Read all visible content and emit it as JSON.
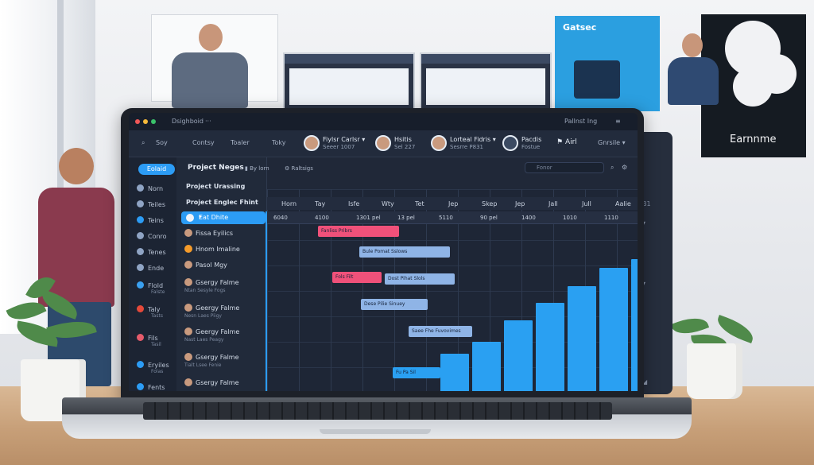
{
  "background": {
    "poster_blue_brand": "Gatsec",
    "poster_dark_word": "Earnnme"
  },
  "titlebar": {
    "app_name": "Dsighboid",
    "menu": "···",
    "right_user": "Pallnst Ing",
    "right_menu": "≡"
  },
  "toolbar": {
    "search_icon": "search-icon",
    "items": [
      "Soy",
      "Contsy",
      "Toaler",
      "Toky"
    ],
    "profiles": [
      {
        "name": "Fiylsr Carlsr ▾",
        "sub": "Seeer   1007"
      },
      {
        "name": "Hsitis",
        "sub": "Sel 227"
      },
      {
        "name": "Lorteal Fidris ▾",
        "sub": "Sesrre   P831"
      },
      {
        "name": "Pacdis",
        "sub": "Fostue"
      }
    ],
    "alert_label": "Airl",
    "menu_label": "Gnrsile ▾"
  },
  "sidebar": {
    "top_pill": "Eolaid",
    "items": [
      {
        "label": "Norn",
        "icon": "home-icon",
        "color": "#8fa4c4"
      },
      {
        "label": "Teiles",
        "icon": "table-icon",
        "color": "#8fa4c4"
      },
      {
        "label": "Teins",
        "icon": "team-icon",
        "color": "#2c9cf5"
      },
      {
        "label": "Conro",
        "icon": "folder-icon",
        "color": "#8fa4c4"
      },
      {
        "label": "Tenes",
        "icon": "calendar-icon",
        "color": "#8fa4c4"
      },
      {
        "label": "Ende",
        "icon": "clock-icon",
        "color": "#8fa4c4"
      },
      {
        "label": "Flold",
        "icon": "chart-icon",
        "color": "#3aa0f0"
      },
      {
        "label": "Taly",
        "icon": "google-icon",
        "color": "#e5493a"
      },
      {
        "label": "Fils",
        "icon": "file-icon",
        "color": "#e55b6b"
      },
      {
        "label": "Eryiles",
        "icon": "settings-icon",
        "color": "#2c9cf5"
      },
      {
        "label": "Fents",
        "icon": "user-icon",
        "color": "#2c9cf5"
      }
    ],
    "subs": [
      "Falste",
      "Tasts",
      "Tasil",
      "Folas"
    ]
  },
  "project": {
    "header": "Project Neges",
    "filter_1": "By lorn",
    "filter_2": "Raltsigs",
    "search_placeholder": "Fonor",
    "section_1": "Project Urassing",
    "section_2": "Project Englec Fhint",
    "selected_task": "Eat Dhite",
    "tasks": [
      {
        "name": "Fissa Eyilics",
        "sub": ""
      },
      {
        "name": "Hnom Imaline",
        "sub": ""
      },
      {
        "name": "Pasol Mgy",
        "sub": ""
      },
      {
        "name": "Gsergy Falme",
        "sub": "Ntan Sesyle Fogs"
      },
      {
        "name": "Geergy Falme",
        "sub": "Nesn Laes Piigy"
      },
      {
        "name": "Geergy Falme",
        "sub": "Nast Laes Peagy"
      },
      {
        "name": "Gsergy Falme",
        "sub": "Tialt Lsee Fenie"
      },
      {
        "name": "Gsergy Falme",
        "sub": ""
      }
    ]
  },
  "timeline": {
    "months": [
      "Horn",
      "Tay",
      "Isfe",
      "Wty",
      "Tet",
      "Jep",
      "Skep",
      "Jep",
      "Jall",
      "Jull",
      "Aalie"
    ],
    "days": [
      "6040",
      "4100",
      "1301 pel",
      "13 pel",
      "5110",
      "90 pel",
      "1400",
      "1010",
      "1110"
    ]
  },
  "gantt": [
    {
      "label": "Fanliss Pribrs",
      "color": "#f0517a"
    },
    {
      "label": "Bule Pomat Sslows",
      "color": "#8fb4e6"
    },
    {
      "label": "Fols Filt",
      "color": "#f0517a"
    },
    {
      "label": "Dost Pihat Slols",
      "color": "#8fb4e6"
    },
    {
      "label": "Dese Pilie Sinuey",
      "color": "#8fb4e6"
    },
    {
      "label": "Saee Fhe Fuvovimes",
      "color": "#8fb4e6"
    },
    {
      "label": "Fu Pa Sil",
      "color": "#2aa0f2"
    }
  ],
  "chart_data": {
    "type": "bar",
    "values": [
      44,
      58,
      84,
      104,
      124,
      146,
      156
    ],
    "ylim": [
      0,
      160
    ]
  }
}
